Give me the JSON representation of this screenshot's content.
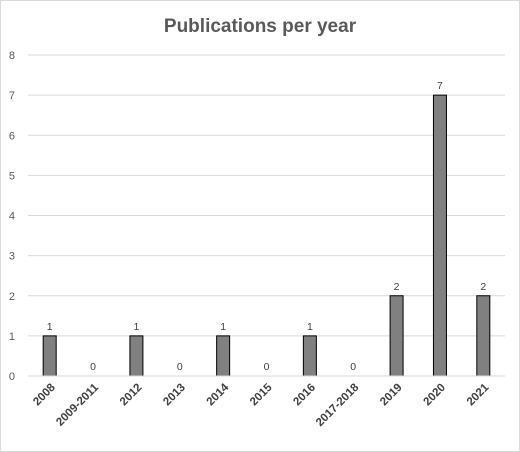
{
  "chart_data": {
    "type": "bar",
    "title": "Publications per year",
    "categories": [
      "2008",
      "2009-2011",
      "2012",
      "2013",
      "2014",
      "2015",
      "2016",
      "2017-2018",
      "2019",
      "2020",
      "2021"
    ],
    "values": [
      1,
      0,
      1,
      0,
      1,
      0,
      1,
      0,
      2,
      7,
      2
    ],
    "xlabel": "",
    "ylabel": "",
    "ylim": [
      0,
      8
    ],
    "yticks": [
      0,
      1,
      2,
      3,
      4,
      5,
      6,
      7,
      8
    ],
    "grid": true,
    "legend": "none",
    "bar_color": "#808080",
    "bar_edge_color": "#000000",
    "grid_color": "#d9d9d9"
  }
}
